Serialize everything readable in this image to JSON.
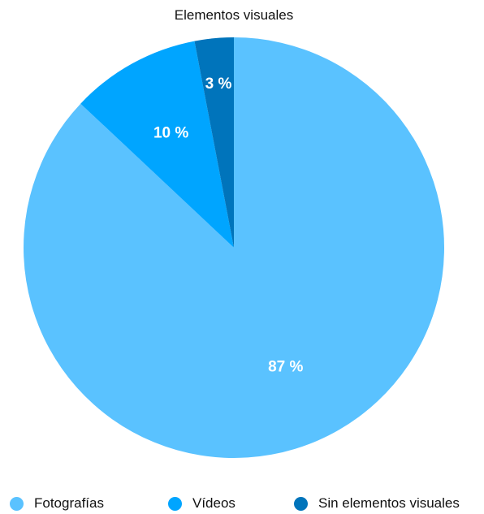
{
  "chart_data": {
    "type": "pie",
    "title": "Elementos visuales",
    "slices": [
      {
        "name": "Fotografías",
        "value": 87,
        "label": "87 %",
        "color": "#5AC2FF"
      },
      {
        "name": "Vídeos",
        "value": 10,
        "label": "10 %",
        "color": "#00A5FF"
      },
      {
        "name": "Sin elementos visuales",
        "value": 3,
        "label": "3 %",
        "color": "#0074BB"
      }
    ],
    "legend_position": "bottom",
    "start_angle": "12 o'clock",
    "direction": "clockwise"
  }
}
